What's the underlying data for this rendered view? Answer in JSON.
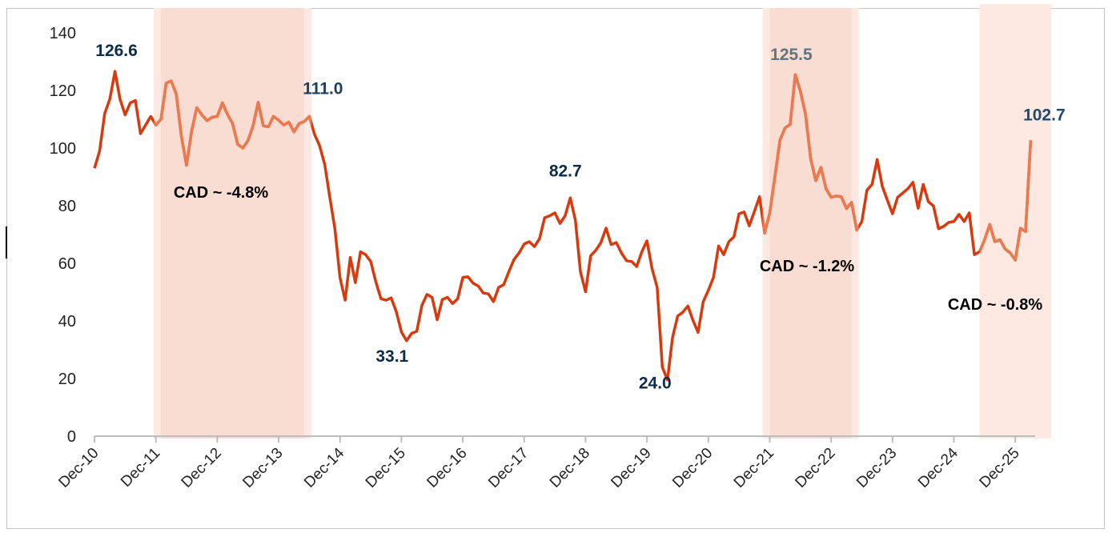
{
  "chart_data": {
    "type": "line",
    "title": "",
    "xlabel": "",
    "ylabel": "",
    "ylim": [
      0,
      140
    ],
    "yticks": [
      "0",
      "20",
      "40",
      "60",
      "80",
      "100",
      "120",
      "140"
    ],
    "xticks": [
      "Dec-10",
      "Dec-11",
      "Dec-12",
      "Dec-13",
      "Dec-14",
      "Dec-15",
      "Dec-16",
      "Dec-17",
      "Dec-18",
      "Dec-19",
      "Dec-20",
      "Dec-21",
      "Dec-22",
      "Dec-23",
      "Dec-24",
      "Dec-25"
    ],
    "grid": false,
    "legend": "none",
    "colors": {
      "line": "#d9390c",
      "line_in_shaded": "#ec7a50",
      "shade": "#f9dcd2",
      "shade_light": "#fde9e2",
      "label_dark": "#0d2c4a",
      "label_gray": "#5f7584",
      "cad_text": "#000000"
    },
    "series": [
      {
        "points": [
          [
            "2010-12",
            93
          ],
          [
            "2011-01",
            99
          ],
          [
            "2011-02",
            112
          ],
          [
            "2011-03",
            117
          ],
          [
            "2011-04",
            126.6
          ],
          [
            "2011-05",
            117
          ],
          [
            "2011-06",
            111.5
          ],
          [
            "2011-07",
            115.7
          ],
          [
            "2011-08",
            116.5
          ],
          [
            "2011-09",
            105
          ],
          [
            "2011-10",
            108
          ],
          [
            "2011-11",
            111
          ],
          [
            "2011-12",
            108
          ],
          [
            "2012-01",
            110
          ],
          [
            "2012-02",
            122.5
          ],
          [
            "2012-03",
            123.3
          ],
          [
            "2012-04",
            118.7
          ],
          [
            "2012-05",
            104
          ],
          [
            "2012-06",
            94
          ],
          [
            "2012-07",
            106
          ],
          [
            "2012-08",
            114
          ],
          [
            "2012-09",
            111.5
          ],
          [
            "2012-10",
            109.5
          ],
          [
            "2012-11",
            110.7
          ],
          [
            "2012-12",
            111
          ],
          [
            "2013-01",
            115.7
          ],
          [
            "2013-02",
            111.7
          ],
          [
            "2013-03",
            108.5
          ],
          [
            "2013-04",
            101.3
          ],
          [
            "2013-05",
            100
          ],
          [
            "2013-06",
            102.6
          ],
          [
            "2013-07",
            107.7
          ],
          [
            "2013-08",
            115.9
          ],
          [
            "2013-09",
            107.7
          ],
          [
            "2013-10",
            107.4
          ],
          [
            "2013-11",
            111
          ],
          [
            "2013-12",
            109.7
          ],
          [
            "2014-01",
            108
          ],
          [
            "2014-02",
            109
          ],
          [
            "2014-03",
            105.6
          ],
          [
            "2014-04",
            108.5
          ],
          [
            "2014-05",
            109.2
          ],
          [
            "2014-06",
            111
          ],
          [
            "2014-07",
            104.8
          ],
          [
            "2014-08",
            100.8
          ],
          [
            "2014-09",
            94.3
          ],
          [
            "2014-10",
            83
          ],
          [
            "2014-11",
            72
          ],
          [
            "2014-12",
            55
          ],
          [
            "2015-01",
            47.2
          ],
          [
            "2015-02",
            62
          ],
          [
            "2015-03",
            53.3
          ],
          [
            "2015-04",
            64
          ],
          [
            "2015-05",
            63
          ],
          [
            "2015-06",
            60.6
          ],
          [
            "2015-07",
            53.6
          ],
          [
            "2015-08",
            47.7
          ],
          [
            "2015-09",
            47.2
          ],
          [
            "2015-10",
            48
          ],
          [
            "2015-11",
            43.2
          ],
          [
            "2015-12",
            36.2
          ],
          [
            "2016-01",
            33.1
          ],
          [
            "2016-02",
            35.7
          ],
          [
            "2016-03",
            36.4
          ],
          [
            "2016-04",
            45.4
          ],
          [
            "2016-05",
            49.2
          ],
          [
            "2016-06",
            48.2
          ],
          [
            "2016-07",
            40.4
          ],
          [
            "2016-08",
            47.4
          ],
          [
            "2016-09",
            48.2
          ],
          [
            "2016-10",
            46
          ],
          [
            "2016-11",
            47.7
          ],
          [
            "2016-12",
            55.1
          ],
          [
            "2017-01",
            55.3
          ],
          [
            "2017-02",
            53.1
          ],
          [
            "2017-03",
            52.1
          ],
          [
            "2017-04",
            49.7
          ],
          [
            "2017-05",
            49.4
          ],
          [
            "2017-06",
            46.7
          ],
          [
            "2017-07",
            51.6
          ],
          [
            "2017-08",
            52.6
          ],
          [
            "2017-09",
            57.1
          ],
          [
            "2017-10",
            61.3
          ],
          [
            "2017-11",
            63.6
          ],
          [
            "2017-12",
            66.7
          ],
          [
            "2018-01",
            67.5
          ],
          [
            "2018-02",
            65.8
          ],
          [
            "2018-03",
            68.5
          ],
          [
            "2018-04",
            75.8
          ],
          [
            "2018-05",
            76.5
          ],
          [
            "2018-06",
            77.5
          ],
          [
            "2018-07",
            73.8
          ],
          [
            "2018-08",
            76.5
          ],
          [
            "2018-09",
            82.7
          ],
          [
            "2018-10",
            75
          ],
          [
            "2018-11",
            57.1
          ],
          [
            "2018-12",
            50.1
          ],
          [
            "2019-01",
            62.6
          ],
          [
            "2019-02",
            64.5
          ],
          [
            "2019-03",
            67.2
          ],
          [
            "2019-04",
            72.2
          ],
          [
            "2019-05",
            66.5
          ],
          [
            "2019-06",
            67.2
          ],
          [
            "2019-07",
            63.6
          ],
          [
            "2019-08",
            60.9
          ],
          [
            "2019-09",
            60.6
          ],
          [
            "2019-10",
            58.9
          ],
          [
            "2019-11",
            64
          ],
          [
            "2019-12",
            67.8
          ],
          [
            "2020-01",
            58.1
          ],
          [
            "2020-02",
            51.6
          ],
          [
            "2020-03",
            24
          ],
          [
            "2020-04",
            19.5
          ],
          [
            "2020-05",
            34.3
          ],
          [
            "2020-06",
            41.7
          ],
          [
            "2020-07",
            43
          ],
          [
            "2020-08",
            45.2
          ],
          [
            "2020-09",
            40.2
          ],
          [
            "2020-10",
            36
          ],
          [
            "2020-11",
            46.7
          ],
          [
            "2020-12",
            50.6
          ],
          [
            "2021-01",
            55.1
          ],
          [
            "2021-02",
            66
          ],
          [
            "2021-03",
            63
          ],
          [
            "2021-04",
            67.5
          ],
          [
            "2021-05",
            69.2
          ],
          [
            "2021-06",
            77.2
          ],
          [
            "2021-07",
            77.8
          ],
          [
            "2021-08",
            73
          ],
          [
            "2021-09",
            78
          ],
          [
            "2021-10",
            83.1
          ],
          [
            "2021-11",
            70.5
          ],
          [
            "2021-12",
            77.5
          ],
          [
            "2022-01",
            90
          ],
          [
            "2022-02",
            102.8
          ],
          [
            "2022-03",
            107
          ],
          [
            "2022-04",
            108.2
          ],
          [
            "2022-05",
            125.5
          ],
          [
            "2022-06",
            119.7
          ],
          [
            "2022-07",
            111.7
          ],
          [
            "2022-08",
            96.3
          ],
          [
            "2022-09",
            88.7
          ],
          [
            "2022-10",
            93.3
          ],
          [
            "2022-11",
            85.9
          ],
          [
            "2022-12",
            82.9
          ],
          [
            "2023-01",
            83.4
          ],
          [
            "2023-02",
            83.1
          ],
          [
            "2023-03",
            79
          ],
          [
            "2023-04",
            81.1
          ],
          [
            "2023-05",
            71.5
          ],
          [
            "2023-06",
            74.5
          ],
          [
            "2023-07",
            85.4
          ],
          [
            "2023-08",
            87.4
          ],
          [
            "2023-09",
            96
          ],
          [
            "2023-10",
            86.7
          ],
          [
            "2023-11",
            81.9
          ],
          [
            "2023-12",
            77.2
          ],
          [
            "2024-01",
            82.9
          ],
          [
            "2024-02",
            84.4
          ],
          [
            "2024-03",
            85.9
          ],
          [
            "2024-04",
            88.1
          ],
          [
            "2024-05",
            79.1
          ],
          [
            "2024-06",
            87.4
          ],
          [
            "2024-07",
            81.4
          ],
          [
            "2024-08",
            79.9
          ],
          [
            "2024-09",
            72
          ],
          [
            "2024-10",
            72.8
          ],
          [
            "2024-11",
            74.2
          ],
          [
            "2024-12",
            74.5
          ],
          [
            "2025-01",
            77
          ],
          [
            "2025-02",
            74.5
          ],
          [
            "2025-03",
            77.5
          ],
          [
            "2025-04",
            63
          ],
          [
            "2025-05",
            64
          ],
          [
            "2025-06",
            68.2
          ],
          [
            "2025-07",
            73.5
          ],
          [
            "2025-08",
            67.5
          ],
          [
            "2025-09",
            68.2
          ],
          [
            "2025-10",
            65
          ],
          [
            "2025-11",
            63.6
          ],
          [
            "2025-12",
            61.1
          ],
          [
            "2026-01",
            72.2
          ],
          [
            "2026-02",
            71
          ],
          [
            "2026-03",
            102.7
          ]
        ]
      }
    ],
    "shaded_regions": [
      {
        "start": "2012-01",
        "end": "2014-05",
        "style": "dark",
        "label": "CAD ~ -4.8%"
      },
      {
        "start": "2021-12",
        "end": "2023-04",
        "style": "dark",
        "label": "CAD ~ -1.2%"
      },
      {
        "start": "2025-05",
        "end": "2026-07",
        "style": "light",
        "label": "CAD ~ -0.8%"
      }
    ],
    "annotations": [
      {
        "text": "126.6",
        "x": "2011-04",
        "y": 126.6,
        "tone": "dark"
      },
      {
        "text": "111.0",
        "x": "2014-06",
        "y": 111.0,
        "tone": "mixed"
      },
      {
        "text": "33.1",
        "x": "2016-01",
        "y": 33.1,
        "tone": "dark"
      },
      {
        "text": "82.7",
        "x": "2018-09",
        "y": 82.7,
        "tone": "dark"
      },
      {
        "text": "24.0",
        "x": "2020-03",
        "y": 24.0,
        "tone": "dark"
      },
      {
        "text": "125.5",
        "x": "2022-05",
        "y": 125.5,
        "tone": "gray"
      },
      {
        "text": "102.7",
        "x": "2026-03",
        "y": 102.7,
        "tone": "mid"
      }
    ]
  }
}
